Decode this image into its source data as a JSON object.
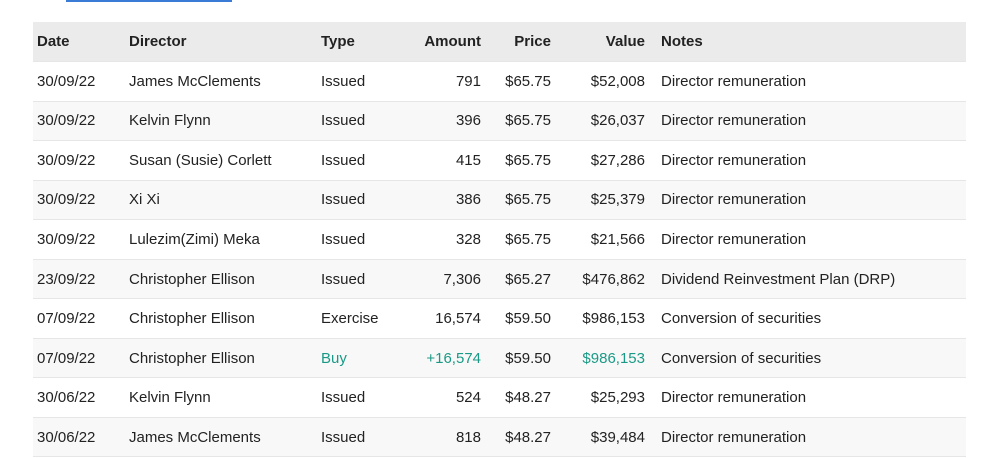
{
  "table": {
    "headers": [
      "Date",
      "Director",
      "Type",
      "Amount",
      "Price",
      "Value",
      "Notes"
    ],
    "rows": [
      [
        "30/09/22",
        "James McClements",
        "Issued",
        "791",
        "$65.75",
        "$52,008",
        "Director remuneration"
      ],
      [
        "30/09/22",
        "Kelvin Flynn",
        "Issued",
        "396",
        "$65.75",
        "$26,037",
        "Director remuneration"
      ],
      [
        "30/09/22",
        "Susan (Susie) Corlett",
        "Issued",
        "415",
        "$65.75",
        "$27,286",
        "Director remuneration"
      ],
      [
        "30/09/22",
        "Xi Xi",
        "Issued",
        "386",
        "$65.75",
        "$25,379",
        "Director remuneration"
      ],
      [
        "30/09/22",
        "Lulezim(Zimi) Meka",
        "Issued",
        "328",
        "$65.75",
        "$21,566",
        "Director remuneration"
      ],
      [
        "23/09/22",
        "Christopher Ellison",
        "Issued",
        "7,306",
        "$65.27",
        "$476,862",
        "Dividend Reinvestment Plan (DRP)"
      ],
      [
        "07/09/22",
        "Christopher Ellison",
        "Exercise",
        "16,574",
        "$59.50",
        "$986,153",
        "Conversion of securities"
      ],
      [
        "07/09/22",
        "Christopher Ellison",
        "Buy",
        "+16,574",
        "$59.50",
        "$986,153",
        "Conversion of securities"
      ],
      [
        "30/06/22",
        "Kelvin Flynn",
        "Issued",
        "524",
        "$48.27",
        "$25,293",
        "Director remuneration"
      ],
      [
        "30/06/22",
        "James McClements",
        "Issued",
        "818",
        "$48.27",
        "$39,484",
        "Director remuneration"
      ]
    ],
    "highlight_rows": [
      7
    ],
    "highlight_color": "#1a9a86"
  }
}
